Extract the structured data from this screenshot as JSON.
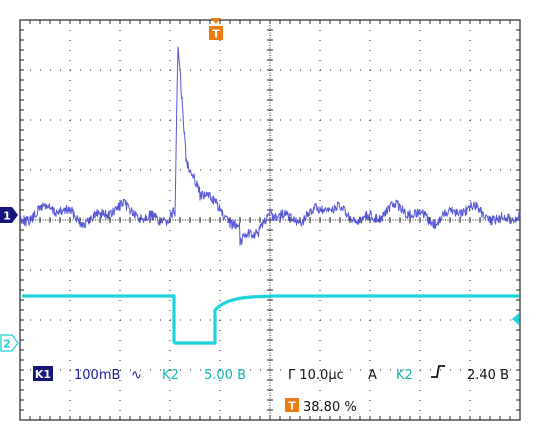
{
  "colors": {
    "background": "#ffffff",
    "grid": "#222222",
    "channel1": "#4646d2",
    "channel2": "#1ed3dc",
    "channel1_label_bg": "#16167a",
    "trigger": "#f07a10"
  },
  "markers": {
    "trigger_top": "T",
    "channel1": "1",
    "channel2": "2"
  },
  "status": {
    "ch1_tag": "K1",
    "ch1_scale": "100mB",
    "ch1_coupling_icon": "ac-coupling-icon",
    "ch1_coupling": "∿",
    "ch2_label": "K2",
    "ch2_scale": "5.00 B",
    "timebase": "Γ 10.0μc",
    "trigger_mode": "A",
    "trigger_source": "K2",
    "trigger_slope_icon": "rising-edge-icon",
    "trigger_level": "2.40 B",
    "trigger_tag": "T",
    "trigger_position": "38.80 %"
  }
}
